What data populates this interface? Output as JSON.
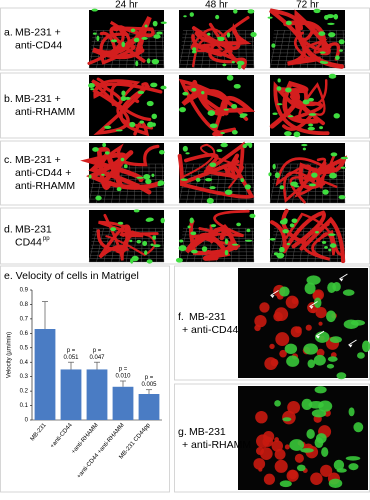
{
  "column_headers": [
    "24 hr",
    "48 hr",
    "72 hr"
  ],
  "rows": [
    {
      "letter": "a.",
      "lines": [
        "MB-231 +",
        "anti-CD44"
      ]
    },
    {
      "letter": "b.",
      "lines": [
        "MB-231 +",
        "anti-RHAMM"
      ]
    },
    {
      "letter": "c.",
      "lines": [
        "MB-231 +",
        "anti-CD44 +",
        "anti-RHAMM"
      ]
    },
    {
      "letter": "d.",
      "lines": [
        "MB-231",
        "CD44"
      ],
      "superscript": "pp"
    }
  ],
  "chart_data": {
    "type": "bar",
    "title": "e. Velocity of cells in Matrigel",
    "y_label": "Velocity (µm/min)",
    "categories": [
      "MB-231",
      "+anti-CD44",
      "+anti-RHAMM",
      "+anti-CD44 +anti-RHAMM",
      "MB-231 CD44pp"
    ],
    "values": [
      0.63,
      0.35,
      0.35,
      0.23,
      0.18
    ],
    "errors": [
      0.19,
      0.05,
      0.05,
      0.04,
      0.03
    ],
    "annotations": [
      null,
      [
        "p =",
        "0.051"
      ],
      [
        "p =",
        "0.047"
      ],
      [
        "p =",
        "0.010"
      ],
      [
        "p =",
        "0.005"
      ]
    ],
    "color": "#4a7cc4",
    "ylim": [
      0,
      0.9
    ],
    "yticks": [
      0,
      0.1,
      0.2,
      0.3,
      0.4,
      0.5,
      0.6,
      0.7,
      0.8,
      0.9
    ]
  },
  "micrographs": [
    {
      "letter": "f.",
      "lines": [
        "MB-231",
        "+ anti-CD44"
      ]
    },
    {
      "letter": "g.",
      "lines": [
        "MB-231",
        "+ anti-RHAMM"
      ]
    }
  ]
}
